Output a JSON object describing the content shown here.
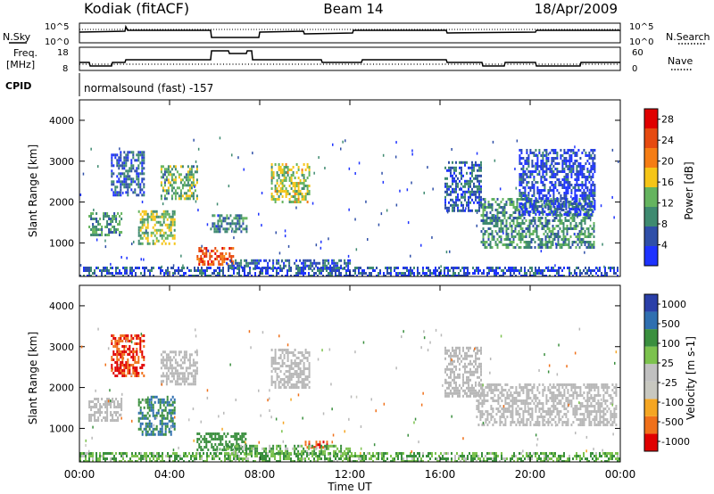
{
  "header": {
    "station": "Kodiak (fitACF)",
    "beam": "Beam 14",
    "date": "18/Apr/2009"
  },
  "status_panel": {
    "left_label_nsky": "N.Sky",
    "left_label_freq_line1": "Freq.",
    "left_label_freq_line2": "[MHz]",
    "left_label_cpid": "CPID",
    "nsky_tick_top": "10^5",
    "nsky_tick_bottom": "10^0",
    "freq_tick_top": "18",
    "freq_tick_bottom": "8",
    "right_label_nsearch": "N.Search",
    "right_label_nave": "Nave",
    "nsearch_tick_top": "10^5",
    "nsearch_tick_bottom": "10^0",
    "nave_tick_top": "60",
    "nave_tick_bottom": "0",
    "cpid_text": "normalsound (fast) -157"
  },
  "colors": {
    "scale_power": [
      "#1e33ff",
      "#2f4fa8",
      "#3f8a70",
      "#65b45f",
      "#f5c518",
      "#f57d14",
      "#e64a10",
      "#e00000"
    ],
    "scale_velocity": [
      "#e00000",
      "#f0701a",
      "#f5a623",
      "#c8c8c0",
      "#c0c0c0",
      "#7cc24e",
      "#3a8f3e",
      "#2f6fb0",
      "#2a3fa8"
    ],
    "ground_scatter": "#b8b8b8"
  },
  "chart_data": [
    {
      "type": "heatmap",
      "name": "power",
      "ylabel": "Slant Range [km]",
      "xlim": [
        0,
        24
      ],
      "ylim": [
        180,
        4500
      ],
      "y_ticks": [
        "1000",
        "2000",
        "3000",
        "4000"
      ],
      "colorbar_label": "Power [dB]",
      "colorbar_ticks": [
        "4",
        "8",
        "12",
        "16",
        "20",
        "24",
        "28"
      ],
      "colorbar_range": [
        0,
        30
      ],
      "patches": [
        {
          "t0": 0.4,
          "t1": 1.9,
          "r0": 1200,
          "r1": 1750,
          "v": 10
        },
        {
          "t0": 1.4,
          "t1": 2.9,
          "r0": 2200,
          "r1": 3250,
          "v": 6
        },
        {
          "t0": 2.6,
          "t1": 4.2,
          "r0": 950,
          "r1": 1800,
          "v": 14
        },
        {
          "t0": 3.6,
          "t1": 5.2,
          "r0": 2100,
          "r1": 2900,
          "v": 12
        },
        {
          "t0": 5.2,
          "t1": 6.8,
          "r0": 500,
          "r1": 900,
          "v": 24
        },
        {
          "t0": 5.8,
          "t1": 7.4,
          "r0": 1250,
          "r1": 1700,
          "v": 8
        },
        {
          "t0": 8.5,
          "t1": 10.2,
          "r0": 2000,
          "r1": 2950,
          "v": 14
        },
        {
          "t0": 6.5,
          "t1": 12.0,
          "r0": 350,
          "r1": 600,
          "v": 6
        },
        {
          "t0": 17.8,
          "t1": 22.8,
          "r0": 900,
          "r1": 2100,
          "v": 10
        },
        {
          "t0": 16.2,
          "t1": 17.8,
          "r0": 1800,
          "r1": 3000,
          "v": 6
        },
        {
          "t0": 19.5,
          "t1": 22.9,
          "r0": 1700,
          "r1": 3300,
          "v": 4
        },
        {
          "t0": 0.0,
          "t1": 24.0,
          "r0": 180,
          "r1": 420,
          "v": 5
        }
      ]
    },
    {
      "type": "heatmap",
      "name": "velocity",
      "ylabel": "Slant Range [km]",
      "xlabel": "Time UT",
      "xlim": [
        0,
        24
      ],
      "ylim": [
        180,
        4500
      ],
      "x_ticks": [
        "00:00",
        "04:00",
        "08:00",
        "12:00",
        "16:00",
        "20:00",
        "00:00"
      ],
      "y_ticks": [
        "1000",
        "2000",
        "3000",
        "4000"
      ],
      "colorbar_label": "Velocity [m s-1]",
      "colorbar_ticks": [
        "1000",
        "500",
        "100",
        "25",
        "-25",
        "-100",
        "-500",
        "-1000"
      ],
      "patches": [
        {
          "t0": 0.4,
          "t1": 1.9,
          "r0": 1200,
          "r1": 1750,
          "v": 0,
          "gs": true
        },
        {
          "t0": 1.4,
          "t1": 2.9,
          "r0": 2300,
          "r1": 3300,
          "v": -500
        },
        {
          "t0": 2.6,
          "t1": 4.2,
          "r0": 850,
          "r1": 1800,
          "v": 500
        },
        {
          "t0": 3.6,
          "t1": 5.2,
          "r0": 2100,
          "r1": 2900,
          "v": 0,
          "gs": true
        },
        {
          "t0": 5.2,
          "t1": 7.4,
          "r0": 450,
          "r1": 900,
          "v": 300
        },
        {
          "t0": 8.5,
          "t1": 10.2,
          "r0": 2000,
          "r1": 2950,
          "v": 0,
          "gs": true
        },
        {
          "t0": 10.0,
          "t1": 11.0,
          "r0": 550,
          "r1": 700,
          "v": -500
        },
        {
          "t0": 6.5,
          "t1": 12.0,
          "r0": 350,
          "r1": 600,
          "v": 100
        },
        {
          "t0": 17.6,
          "t1": 23.8,
          "r0": 1100,
          "r1": 2100,
          "v": 0,
          "gs": true
        },
        {
          "t0": 16.2,
          "t1": 17.8,
          "r0": 1800,
          "r1": 3000,
          "v": 0,
          "gs": true
        },
        {
          "t0": 0.0,
          "t1": 24.0,
          "r0": 180,
          "r1": 420,
          "v": 100
        }
      ]
    }
  ]
}
